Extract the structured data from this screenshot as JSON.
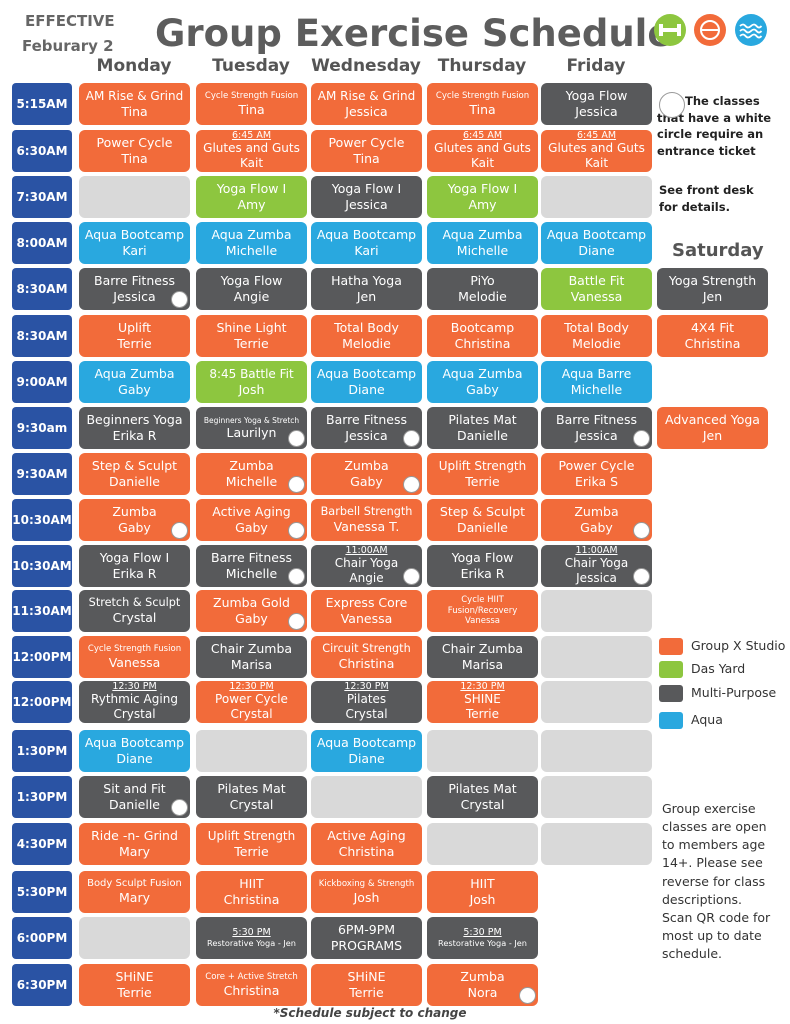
{
  "header": {
    "effective": "EFFECTIVE",
    "date": "Feburary 2",
    "title": "Group Exercise Schedule"
  },
  "days": [
    "Monday",
    "Tuesday",
    "Wednesday",
    "Thursday",
    "Friday"
  ],
  "saturday": "Saturday",
  "empty_color": "#d9d9d9",
  "legend": [
    {
      "label": "Group X Studio",
      "color": "#f26b3a"
    },
    {
      "label": "Das Yard",
      "color": "#8dc63f"
    },
    {
      "label": "Multi-Purpose",
      "color": "#58595b"
    },
    {
      "label": "Aqua",
      "color": "#29a8df"
    }
  ],
  "rows": [
    {
      "time": "5:15AM",
      "cells": [
        {
          "room": "Group X Studio",
          "lines": [
            "AM Rise & Grind",
            "Tina"
          ]
        },
        {
          "room": "Group X Studio",
          "lines": [
            "Cycle Strength Fusion",
            "Tina"
          ]
        },
        {
          "room": "Group X Studio",
          "lines": [
            "AM Rise & Grind",
            "Jessica"
          ]
        },
        {
          "room": "Group X Studio",
          "lines": [
            "Cycle Strength Fusion",
            "Tina"
          ]
        },
        {
          "room": "Multi-Purpose",
          "lines": [
            "Yoga Flow",
            "Jessica"
          ]
        },
        null
      ]
    },
    {
      "time": "6:30AM",
      "cells": [
        {
          "room": "Group X Studio",
          "lines": [
            "Power Cycle",
            "Tina"
          ]
        },
        {
          "room": "Group X Studio",
          "note": "6:45 AM",
          "lines": [
            "Glutes and Guts",
            "Kait"
          ]
        },
        {
          "room": "Group X Studio",
          "lines": [
            "Power Cycle",
            "Tina"
          ]
        },
        {
          "room": "Group X Studio",
          "note": "6:45 AM",
          "lines": [
            "Glutes and Guts",
            "Kait"
          ]
        },
        {
          "room": "Group X Studio",
          "note": "6:45 AM",
          "lines": [
            "Glutes and Guts",
            "Kait"
          ]
        },
        null
      ]
    },
    {
      "time": "7:30AM",
      "cells": [
        {
          "room": null,
          "lines": []
        },
        {
          "room": "Das Yard",
          "lines": [
            "Yoga Flow I",
            "Amy"
          ]
        },
        {
          "room": "Multi-Purpose",
          "lines": [
            "Yoga Flow I",
            "Jessica"
          ]
        },
        {
          "room": "Das Yard",
          "lines": [
            "Yoga Flow I",
            "Amy"
          ]
        },
        {
          "room": null,
          "lines": []
        },
        null
      ]
    },
    {
      "time": "8:00AM",
      "cells": [
        {
          "room": "Aqua",
          "lines": [
            "Aqua Bootcamp",
            "Kari"
          ]
        },
        {
          "room": "Aqua",
          "lines": [
            "Aqua Zumba",
            "Michelle"
          ]
        },
        {
          "room": "Aqua",
          "lines": [
            "Aqua Bootcamp",
            "Kari"
          ]
        },
        {
          "room": "Aqua",
          "lines": [
            "Aqua Zumba",
            "Michelle"
          ]
        },
        {
          "room": "Aqua",
          "lines": [
            "Aqua Bootcamp",
            "Diane"
          ]
        },
        null
      ]
    },
    {
      "time": "8:30AM",
      "cells": [
        {
          "room": "Multi-Purpose",
          "lines": [
            "Barre Fitness",
            "Jessica"
          ],
          "ticket": true
        },
        {
          "room": "Multi-Purpose",
          "lines": [
            "Yoga Flow",
            "Angie"
          ]
        },
        {
          "room": "Multi-Purpose",
          "lines": [
            "Hatha Yoga",
            "Jen"
          ]
        },
        {
          "room": "Multi-Purpose",
          "lines": [
            "PiYo",
            "Melodie"
          ]
        },
        {
          "room": "Das Yard",
          "lines": [
            "Battle Fit",
            "Vanessa"
          ]
        },
        {
          "room": "Multi-Purpose",
          "lines": [
            "Yoga Strength",
            "Jen"
          ]
        }
      ]
    },
    {
      "time": "8:30AM",
      "cells": [
        {
          "room": "Group X Studio",
          "lines": [
            "Uplift",
            "Terrie"
          ]
        },
        {
          "room": "Group X Studio",
          "lines": [
            "Shine Light",
            "Terrie"
          ]
        },
        {
          "room": "Group X Studio",
          "lines": [
            "Total Body",
            "Melodie"
          ]
        },
        {
          "room": "Group X Studio",
          "lines": [
            "Bootcamp",
            "Christina"
          ]
        },
        {
          "room": "Group X Studio",
          "lines": [
            "Total Body",
            "Melodie"
          ]
        },
        {
          "room": "Group X Studio",
          "lines": [
            "4X4 Fit",
            "Christina"
          ]
        }
      ]
    },
    {
      "time": "9:00AM",
      "cells": [
        {
          "room": "Aqua",
          "lines": [
            "Aqua Zumba",
            "Gaby"
          ]
        },
        {
          "room": "Das Yard",
          "lines": [
            "8:45 Battle Fit",
            "Josh"
          ]
        },
        {
          "room": "Aqua",
          "lines": [
            "Aqua Bootcamp",
            "Diane"
          ]
        },
        {
          "room": "Aqua",
          "lines": [
            "Aqua Zumba",
            "Gaby"
          ]
        },
        {
          "room": "Aqua",
          "lines": [
            "Aqua Barre",
            "Michelle"
          ]
        },
        null
      ]
    },
    {
      "time": "9:30am",
      "cells": [
        {
          "room": "Multi-Purpose",
          "lines": [
            "Beginners Yoga",
            "Erika R"
          ]
        },
        {
          "room": "Multi-Purpose",
          "lines": [
            "Beginners Yoga & Stretch",
            "Laurilyn"
          ],
          "ticket": true
        },
        {
          "room": "Multi-Purpose",
          "lines": [
            "Barre Fitness",
            "Jessica"
          ],
          "ticket": true
        },
        {
          "room": "Multi-Purpose",
          "lines": [
            "Pilates Mat",
            "Danielle"
          ]
        },
        {
          "room": "Multi-Purpose",
          "lines": [
            "Barre Fitness",
            "Jessica"
          ],
          "ticket": true
        },
        {
          "room": "Group X Studio",
          "lines": [
            "Advanced Yoga",
            "Jen"
          ]
        }
      ]
    },
    {
      "time": "9:30AM",
      "cells": [
        {
          "room": "Group X Studio",
          "lines": [
            "Step & Sculpt",
            "Danielle"
          ]
        },
        {
          "room": "Group X Studio",
          "lines": [
            "Zumba",
            "Michelle"
          ],
          "ticket": true
        },
        {
          "room": "Group X Studio",
          "lines": [
            "Zumba",
            "Gaby"
          ],
          "ticket": true
        },
        {
          "room": "Group X Studio",
          "lines": [
            "Uplift Strength",
            "Terrie"
          ]
        },
        {
          "room": "Group X Studio",
          "lines": [
            "Power Cycle",
            "Erika S"
          ]
        },
        null
      ]
    },
    {
      "time": "10:30AM",
      "cells": [
        {
          "room": "Group X Studio",
          "lines": [
            "Zumba",
            "Gaby"
          ],
          "ticket": true
        },
        {
          "room": "Group X Studio",
          "lines": [
            "Active Aging",
            "Gaby"
          ],
          "ticket": true
        },
        {
          "room": "Group X Studio",
          "lines": [
            "Barbell Strength",
            "Vanessa T."
          ]
        },
        {
          "room": "Group X Studio",
          "lines": [
            "Step & Sculpt",
            "Danielle"
          ]
        },
        {
          "room": "Group X Studio",
          "lines": [
            "Zumba",
            "Gaby"
          ],
          "ticket": true
        },
        null
      ]
    },
    {
      "time": "10:30AM",
      "cells": [
        {
          "room": "Multi-Purpose",
          "lines": [
            "Yoga Flow I",
            "Erika R"
          ]
        },
        {
          "room": "Multi-Purpose",
          "lines": [
            "Barre Fitness",
            "Michelle"
          ],
          "ticket": true
        },
        {
          "room": "Multi-Purpose",
          "note": "11:00AM",
          "lines": [
            "Chair Yoga",
            "Angie"
          ],
          "ticket": true
        },
        {
          "room": "Multi-Purpose",
          "lines": [
            "Yoga Flow",
            "Erika R"
          ]
        },
        {
          "room": "Multi-Purpose",
          "note": "11:00AM",
          "lines": [
            "Chair Yoga",
            "Jessica"
          ],
          "ticket": true
        },
        null
      ]
    },
    {
      "time": "11:30AM",
      "cells": [
        {
          "room": "Multi-Purpose",
          "lines": [
            "Stretch & Sculpt",
            "Crystal"
          ]
        },
        {
          "room": "Group X Studio",
          "lines": [
            "Zumba Gold",
            "Gaby"
          ],
          "ticket": true
        },
        {
          "room": "Group X Studio",
          "lines": [
            "Express Core",
            "Vanessa"
          ]
        },
        {
          "room": "Group X Studio",
          "lines": [
            "Cycle HIIT",
            "Fusion/Recovery",
            "Vanessa"
          ]
        },
        {
          "room": null,
          "lines": []
        },
        null
      ]
    },
    {
      "time": "12:00PM",
      "cells": [
        {
          "room": "Group X Studio",
          "lines": [
            "Cycle Strength Fusion",
            "Vanessa"
          ]
        },
        {
          "room": "Multi-Purpose",
          "lines": [
            "Chair Zumba",
            "Marisa"
          ]
        },
        {
          "room": "Group X Studio",
          "lines": [
            "Circuit Strength",
            "Christina"
          ]
        },
        {
          "room": "Multi-Purpose",
          "lines": [
            "Chair Zumba",
            "Marisa"
          ]
        },
        {
          "room": null,
          "lines": []
        },
        null
      ]
    },
    {
      "time": "12:00PM",
      "cells": [
        {
          "room": "Multi-Purpose",
          "note": "12:30 PM",
          "lines": [
            "Rythmic Aging",
            "Crystal"
          ]
        },
        {
          "room": "Group X Studio",
          "note": "12:30 PM",
          "lines": [
            "Power Cycle",
            "Crystal"
          ]
        },
        {
          "room": "Multi-Purpose",
          "note": "12:30 PM",
          "lines": [
            "Pilates",
            "Crystal"
          ]
        },
        {
          "room": "Group X Studio",
          "note": "12:30 PM",
          "lines": [
            "SHINE",
            "Terrie"
          ]
        },
        {
          "room": null,
          "lines": []
        },
        null
      ]
    },
    {
      "time": "1:30PM",
      "cells": [
        {
          "room": "Aqua",
          "lines": [
            "Aqua Bootcamp",
            "Diane"
          ]
        },
        {
          "room": null,
          "lines": []
        },
        {
          "room": "Aqua",
          "lines": [
            "Aqua Bootcamp",
            "Diane"
          ]
        },
        {
          "room": null,
          "lines": []
        },
        {
          "room": null,
          "lines": []
        },
        null
      ]
    },
    {
      "time": "1:30PM",
      "cells": [
        {
          "room": "Multi-Purpose",
          "lines": [
            "Sit and Fit",
            "Danielle"
          ],
          "ticket": true
        },
        {
          "room": "Multi-Purpose",
          "lines": [
            "Pilates Mat",
            "Crystal"
          ]
        },
        {
          "room": null,
          "lines": []
        },
        {
          "room": "Multi-Purpose",
          "lines": [
            "Pilates Mat",
            "Crystal"
          ]
        },
        {
          "room": null,
          "lines": []
        },
        null
      ]
    },
    {
      "time": "4:30PM",
      "cells": [
        {
          "room": "Group X Studio",
          "lines": [
            "Ride -n- Grind",
            "Mary"
          ]
        },
        {
          "room": "Group X Studio",
          "lines": [
            "Uplift Strength",
            "Terrie"
          ]
        },
        {
          "room": "Group X Studio",
          "lines": [
            "Active Aging",
            "Christina"
          ]
        },
        {
          "room": null,
          "lines": []
        },
        {
          "room": null,
          "lines": []
        },
        null
      ]
    },
    {
      "time": "5:30PM",
      "cells": [
        {
          "room": "Group X Studio",
          "lines": [
            "Body Sculpt Fusion",
            "Mary"
          ]
        },
        {
          "room": "Group X Studio",
          "lines": [
            "HIIT",
            "Christina"
          ]
        },
        {
          "room": "Group X Studio",
          "lines": [
            "Kickboxing & Strength",
            "Josh"
          ]
        },
        {
          "room": "Group X Studio",
          "lines": [
            "HIIT",
            "Josh"
          ]
        },
        null,
        null
      ]
    },
    {
      "time": "6:00PM",
      "cells": [
        {
          "room": null,
          "lines": []
        },
        {
          "room": "Multi-Purpose",
          "note": "5:30 PM",
          "lines": [
            "Restorative Yoga - Jen"
          ]
        },
        {
          "room": "Multi-Purpose",
          "lines": [
            "6PM-9PM",
            "PROGRAMS"
          ]
        },
        {
          "room": "Multi-Purpose",
          "note": "5:30 PM",
          "lines": [
            "Restorative Yoga - Jen"
          ]
        },
        null,
        null
      ]
    },
    {
      "time": "6:30PM",
      "cells": [
        {
          "room": "Group X Studio",
          "lines": [
            "SHiNE",
            "Terrie"
          ]
        },
        {
          "room": "Group X Studio",
          "lines": [
            "Core + Active Stretch",
            "Christina"
          ]
        },
        {
          "room": "Group X Studio",
          "lines": [
            "SHiNE",
            "Terrie"
          ]
        },
        {
          "room": "Group X Studio",
          "lines": [
            "Zumba",
            "Nora"
          ],
          "ticket": true
        },
        null,
        null
      ]
    }
  ],
  "ticket_note": {
    "text": "The classes that have a white circle require an entrance ticket",
    "details": "See front desk for details."
  },
  "info": "Group exercise classes are open to members age 14+. Please see reverse for class descriptions. Scan QR code for most up to date schedule.",
  "footer": "*Schedule subject to change"
}
